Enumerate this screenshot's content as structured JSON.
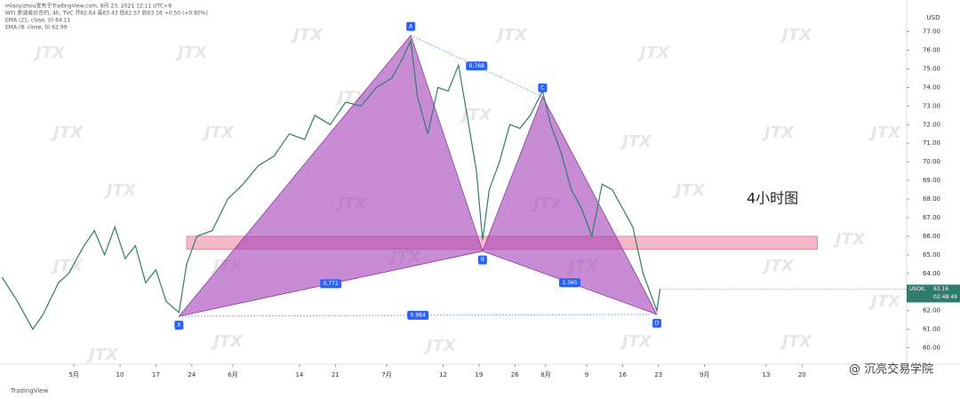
{
  "header": [
    "mlaoyizhou发布于TradingView.com, 8月 23, 2021 12:11 UTC+8",
    "WTI 原油差价合约, 4h, TVC 开62.64 高63.43 低62.57 收63.16 +0.50 (+0.80%)",
    "EMA (21, close, 0) 64.11",
    "EMA (8, close, 0) 62.99"
  ],
  "watermark": "JTX",
  "footer": {
    "brand": "TradingView",
    "credit": "@ 沉亮交易学院"
  },
  "chart_data": {
    "type": "line",
    "annotation": "4小时图",
    "axis_unit": "USD",
    "color": "#2e7d6b",
    "x": [
      107,
      110,
      113,
      115,
      118,
      120,
      123,
      125,
      127,
      129,
      131,
      133,
      135,
      137,
      139,
      141.5,
      143,
      145,
      148,
      151,
      154,
      157,
      160,
      163,
      166,
      168,
      171,
      174,
      177,
      180,
      183,
      185,
      186.7,
      188,
      190,
      192,
      194,
      196,
      198,
      199.5,
      200.7,
      202,
      204,
      206,
      208,
      210,
      212.4,
      214,
      216,
      218,
      220,
      222,
      224,
      226,
      228,
      230,
      232,
      234,
      234.7,
      235.3
    ],
    "values": [
      63.8,
      62.5,
      61.0,
      61.8,
      63.5,
      64.0,
      65.5,
      66.3,
      65.0,
      66.5,
      64.8,
      65.5,
      63.5,
      64.2,
      62.5,
      61.9,
      64.5,
      66.0,
      66.3,
      68.0,
      68.8,
      69.8,
      70.3,
      71.5,
      71.2,
      72.5,
      72.0,
      73.2,
      73.0,
      74.0,
      74.5,
      75.5,
      76.5,
      73.5,
      71.5,
      74.0,
      73.8,
      75.2,
      72.0,
      69.5,
      65.8,
      68.5,
      70.0,
      72.0,
      71.8,
      72.5,
      73.8,
      72.0,
      70.5,
      68.5,
      67.5,
      66.0,
      68.8,
      68.5,
      67.5,
      66.5,
      64.0,
      62.5,
      62.0,
      63.16
    ],
    "xlim": [
      106.6,
      283.4
    ],
    "xticks": [
      {
        "value": 121,
        "label": "5月"
      },
      {
        "value": 130,
        "label": "10"
      },
      {
        "value": 137,
        "label": "17"
      },
      {
        "value": 144,
        "label": "24"
      },
      {
        "value": 152,
        "label": "6月"
      },
      {
        "value": 165,
        "label": "14"
      },
      {
        "value": 172,
        "label": "21"
      },
      {
        "value": 182,
        "label": "7月"
      },
      {
        "value": 193,
        "label": "12"
      },
      {
        "value": 200,
        "label": "19"
      },
      {
        "value": 207,
        "label": "26"
      },
      {
        "value": 213,
        "label": "8月"
      },
      {
        "value": 221,
        "label": "9"
      },
      {
        "value": 228,
        "label": "16"
      },
      {
        "value": 235,
        "label": "23"
      },
      {
        "value": 244,
        "label": "9月"
      },
      {
        "value": 256,
        "label": "13"
      },
      {
        "value": 263,
        "label": "20"
      }
    ],
    "ylim": [
      59.12,
      78.03
    ],
    "yticks": [
      {
        "value": 60,
        "label": "60.00"
      },
      {
        "value": 61,
        "label": "61.00"
      },
      {
        "value": 62,
        "label": "62.00"
      },
      {
        "value": 63,
        "label": "63.00"
      },
      {
        "value": 64,
        "label": "64.00"
      },
      {
        "value": 65,
        "label": "65.00"
      },
      {
        "value": 66,
        "label": "66.00"
      },
      {
        "value": 67,
        "label": "67.00"
      },
      {
        "value": 68,
        "label": "68.00"
      },
      {
        "value": 69,
        "label": "69.00"
      },
      {
        "value": 70,
        "label": "70.00"
      },
      {
        "value": 71,
        "label": "71.00"
      },
      {
        "value": 72,
        "label": "72.00"
      },
      {
        "value": 73,
        "label": "73.00"
      },
      {
        "value": 74,
        "label": "74.00"
      },
      {
        "value": 75,
        "label": "75.00"
      },
      {
        "value": 76,
        "label": "76.00"
      },
      {
        "value": 77,
        "label": "77.00"
      }
    ],
    "pattern": {
      "color": "#a43fb8",
      "points": [
        {
          "label": "X",
          "x": 141.5,
          "y": 61.7
        },
        {
          "label": "A",
          "x": 186.7,
          "y": 76.8
        },
        {
          "label": "B",
          "x": 200.7,
          "y": 65.2
        },
        {
          "label": "C",
          "x": 212.4,
          "y": 73.5
        },
        {
          "label": "D",
          "x": 234.7,
          "y": 61.8
        }
      ],
      "ratios": [
        0.772,
        0.768,
        1.365,
        0.984
      ]
    },
    "zone": {
      "xlim": [
        143,
        266
      ],
      "ylim": [
        65.3,
        66.0
      ],
      "color": "#f4a7bd"
    },
    "last": {
      "symbol": "USOIL",
      "price": 63.16,
      "countdown": "02:48:49"
    }
  }
}
